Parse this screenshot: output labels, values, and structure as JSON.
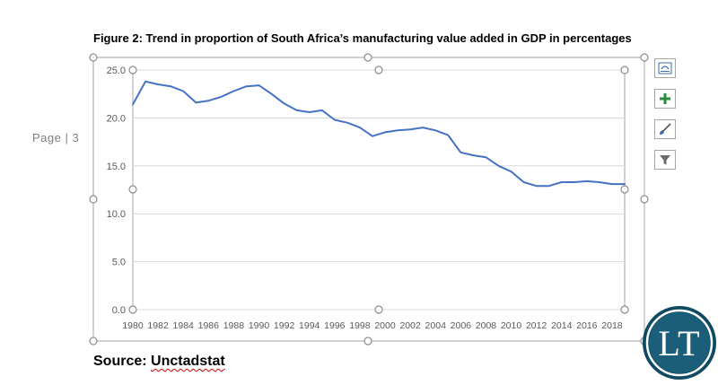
{
  "page": {
    "label": "Page | 3"
  },
  "figure": {
    "title": "Figure 2: Trend in proportion of South Africa’s manufacturing value added in GDP in percentages",
    "source_prefix": "Source: ",
    "source_name": "Unctadstat"
  },
  "toolbar": {
    "buttons": [
      {
        "name": "layout-options-button",
        "icon": "layout-options-icon"
      },
      {
        "name": "chart-elements-button",
        "icon": "plus-icon"
      },
      {
        "name": "chart-styles-button",
        "icon": "brush-icon"
      },
      {
        "name": "chart-filters-button",
        "icon": "funnel-icon"
      }
    ]
  },
  "logo": {
    "text": "LT",
    "color": "#1b5e7a"
  },
  "colors": {
    "line": "#4472c4",
    "grid": "#d9d9d9",
    "tick_text": "#595959",
    "handle": "#8c8c8c"
  },
  "chart_data": {
    "type": "line",
    "x": [
      1980,
      1981,
      1982,
      1983,
      1984,
      1985,
      1986,
      1987,
      1988,
      1989,
      1990,
      1991,
      1992,
      1993,
      1994,
      1995,
      1996,
      1997,
      1998,
      1999,
      2000,
      2001,
      2002,
      2003,
      2004,
      2005,
      2006,
      2007,
      2008,
      2009,
      2010,
      2011,
      2012,
      2013,
      2014,
      2015,
      2016,
      2017,
      2018,
      2019
    ],
    "series": [
      {
        "values": [
          21.4,
          23.8,
          23.5,
          23.3,
          22.8,
          21.6,
          21.8,
          22.2,
          22.8,
          23.3,
          23.4,
          22.5,
          21.5,
          20.8,
          20.6,
          20.8,
          19.8,
          19.5,
          19.0,
          18.1,
          18.5,
          18.7,
          18.8,
          19.0,
          18.7,
          18.2,
          16.4,
          16.1,
          15.9,
          15.0,
          14.4,
          13.3,
          12.9,
          12.9,
          13.3,
          13.3,
          13.4,
          13.3,
          13.1,
          13.1
        ]
      }
    ],
    "x_tick_labels": [
      "1980",
      "1982",
      "1984",
      "1986",
      "1988",
      "1990",
      "1992",
      "1994",
      "1996",
      "1998",
      "2000",
      "2002",
      "2004",
      "2006",
      "2008",
      "2010",
      "2012",
      "2014",
      "2016",
      "2018"
    ],
    "y_tick_labels": [
      "0.0",
      "5.0",
      "10.0",
      "15.0",
      "20.0",
      "25.0"
    ],
    "ylim": [
      0,
      25
    ],
    "xlim": [
      1980,
      2019
    ],
    "grid": true,
    "legend": "none"
  }
}
